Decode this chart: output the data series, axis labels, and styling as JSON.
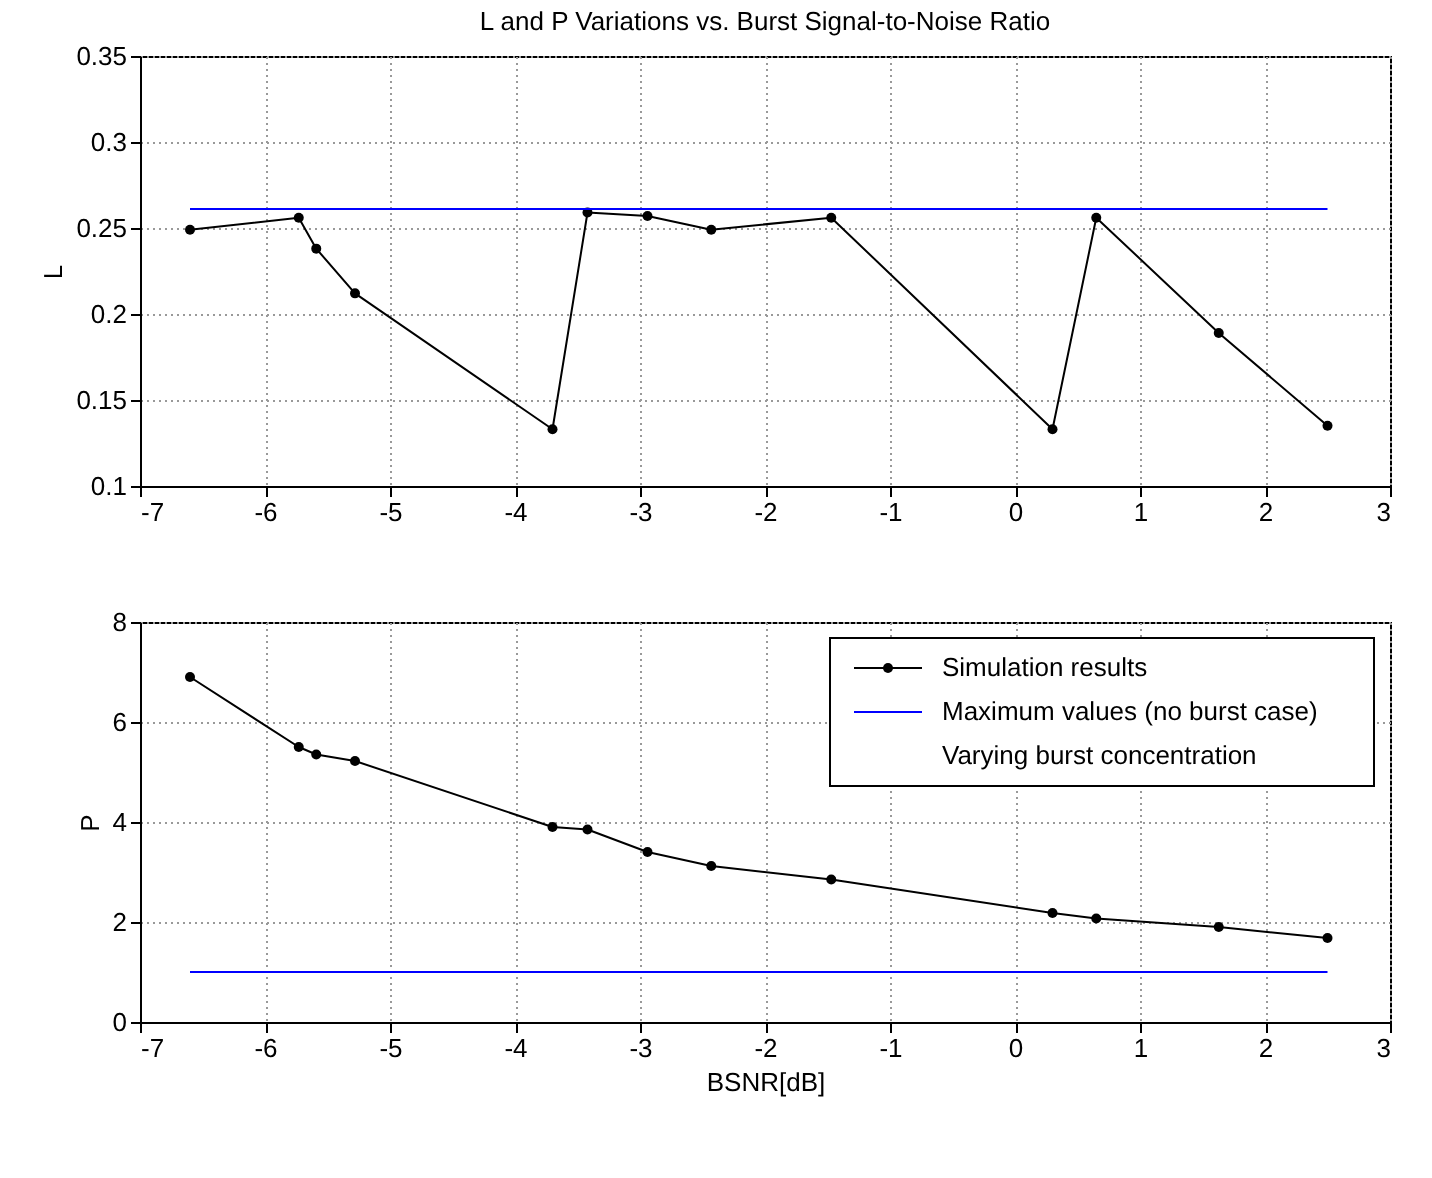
{
  "chart_data": [
    {
      "type": "line",
      "title": "L and P Variations vs. Burst Signal-to-Noise Ratio",
      "ylabel": "L",
      "x": [
        -6.6,
        -5.73,
        -5.59,
        -5.28,
        -3.7,
        -3.42,
        -2.94,
        -2.43,
        -1.47,
        0.3,
        0.65,
        1.63,
        2.5
      ],
      "series": [
        {
          "color": "#000000",
          "marker": "circle",
          "values": [
            0.249,
            0.256,
            0.238,
            0.212,
            0.133,
            0.259,
            0.257,
            0.249,
            0.256,
            0.133,
            0.256,
            0.189,
            0.135
          ]
        },
        {
          "color": "#0000ff",
          "marker": "none",
          "values": [
            0.261,
            0.261,
            0.261,
            0.261,
            0.261,
            0.261,
            0.261,
            0.261,
            0.261,
            0.261,
            0.261,
            0.261,
            0.261
          ]
        }
      ],
      "xlim": [
        -7,
        3
      ],
      "xticks": [
        -7,
        -6,
        -5,
        -4,
        -3,
        -2,
        -1,
        0,
        1,
        2,
        3
      ],
      "ylim": [
        0.1,
        0.35
      ],
      "yticks": [
        0.1,
        0.15,
        0.2,
        0.25,
        0.3,
        0.35
      ],
      "grid": true,
      "legend": false
    },
    {
      "type": "line",
      "xlabel": "BSNR[dB]",
      "ylabel": "P",
      "x": [
        -6.6,
        -5.73,
        -5.59,
        -5.28,
        -3.7,
        -3.42,
        -2.94,
        -2.43,
        -1.47,
        0.3,
        0.65,
        1.63,
        2.5
      ],
      "series": [
        {
          "name": "Simulation results",
          "color": "#000000",
          "marker": "circle",
          "values": [
            6.9,
            5.5,
            5.35,
            5.22,
            3.9,
            3.85,
            3.4,
            3.12,
            2.85,
            2.18,
            2.07,
            1.9,
            1.68
          ]
        },
        {
          "name": "Maximum values (no burst case)",
          "color": "#0000ff",
          "marker": "none",
          "values": [
            1,
            1,
            1,
            1,
            1,
            1,
            1,
            1,
            1,
            1,
            1,
            1,
            1
          ]
        }
      ],
      "annotations": [
        "Varying burst concentration"
      ],
      "xlim": [
        -7,
        3
      ],
      "xticks": [
        -7,
        -6,
        -5,
        -4,
        -3,
        -2,
        -1,
        0,
        1,
        2,
        3
      ],
      "ylim": [
        0,
        8
      ],
      "yticks": [
        0,
        2,
        4,
        6,
        8
      ],
      "grid": true,
      "legend": "top right"
    }
  ]
}
